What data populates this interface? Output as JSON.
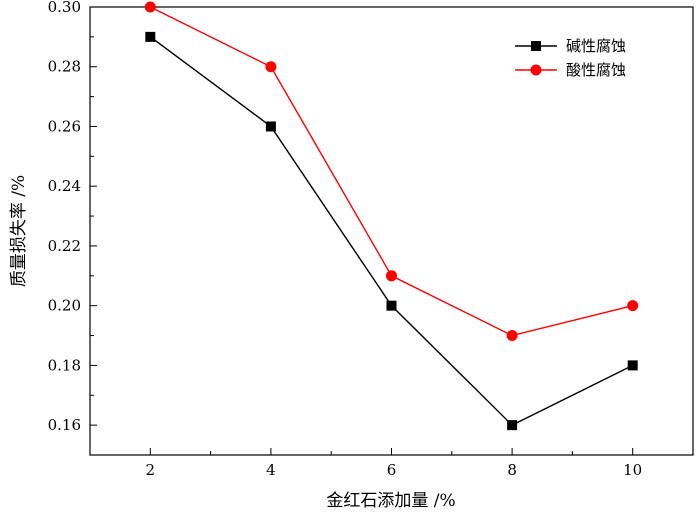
{
  "chart_data": {
    "type": "line",
    "title": "",
    "xlabel": "金红石添加量 /%",
    "ylabel": "质量损失率 /%",
    "x": [
      2,
      4,
      6,
      8,
      10
    ],
    "xticks": [
      "2",
      "4",
      "6",
      "8",
      "10"
    ],
    "xlim": [
      1,
      11
    ],
    "ylim": [
      0.15,
      0.3
    ],
    "yticks": [
      "0.16",
      "0.18",
      "0.20",
      "0.22",
      "0.24",
      "0.26",
      "0.28",
      "0.30"
    ],
    "grid": false,
    "legend_position": "top-right",
    "series": [
      {
        "name": "碱性腐蚀",
        "values": [
          0.29,
          0.26,
          0.2,
          0.16,
          0.18
        ],
        "color": "#000000",
        "marker": "square"
      },
      {
        "name": "酸性腐蚀",
        "values": [
          0.3,
          0.28,
          0.21,
          0.19,
          0.2
        ],
        "color": "#ff0000",
        "marker": "circle"
      }
    ]
  }
}
